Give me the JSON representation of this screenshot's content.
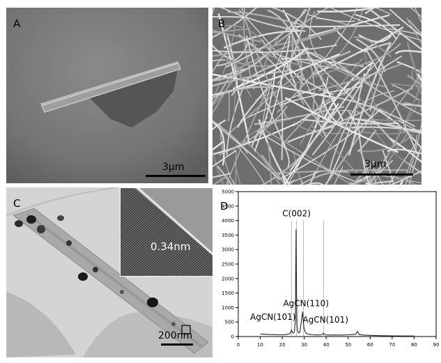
{
  "figure": {
    "panels": [
      {
        "id": "A",
        "label": "A",
        "scale_bar": "3μm"
      },
      {
        "id": "B",
        "label": "B",
        "scale_bar": "3μm"
      },
      {
        "id": "C",
        "label": "C",
        "scale_bar": "200nm",
        "inset_annotation": "0.34nm"
      },
      {
        "id": "D",
        "label": "D"
      }
    ]
  },
  "colors": {
    "sem_bg": "#7a7a7a",
    "tem_bg": "#d2d2d2",
    "line": "#222222",
    "reference_line": "#b8b8b8"
  },
  "chart_data": {
    "type": "line",
    "title": "",
    "xlabel": "",
    "ylabel": "",
    "xlim": [
      0,
      90
    ],
    "ylim": [
      0,
      5000
    ],
    "x_ticks": [
      0,
      10,
      20,
      30,
      40,
      50,
      60,
      70,
      80,
      90
    ],
    "y_ticks": [
      0,
      500,
      1000,
      1500,
      2000,
      2500,
      3000,
      3500,
      4000,
      4500,
      5000
    ],
    "series": [
      {
        "x": [
          10,
          12,
          14,
          16,
          18,
          20,
          22,
          23.5,
          24.2,
          24.8,
          25.5,
          26,
          26.3,
          26.5,
          26.7,
          27,
          27.5,
          28,
          28.5,
          29.3,
          29.8,
          30.3,
          31,
          32,
          34,
          36,
          38,
          38.8,
          39.5,
          41,
          44,
          47,
          50,
          52,
          53.5,
          54.2,
          55,
          57,
          60,
          65,
          70,
          75,
          80
        ],
        "y": [
          90,
          80,
          70,
          65,
          60,
          60,
          70,
          100,
          220,
          120,
          150,
          600,
          3700,
          1500,
          400,
          200,
          120,
          150,
          420,
          850,
          350,
          180,
          100,
          80,
          60,
          55,
          60,
          110,
          60,
          50,
          55,
          50,
          60,
          70,
          80,
          180,
          70,
          50,
          40,
          30,
          25,
          20,
          20
        ]
      }
    ],
    "reference_lines": [
      24.2,
      26.5,
      29.6,
      38.8
    ],
    "annotations": [
      {
        "text": "C(002)",
        "x": 26.5,
        "y": 4150
      },
      {
        "text": "AgCN(101)",
        "x": 15.8,
        "y": 580
      },
      {
        "text": "AgCN(110)",
        "x": 30.8,
        "y": 1040
      },
      {
        "text": "AgCN(101)",
        "x": 39.7,
        "y": 480
      }
    ]
  }
}
